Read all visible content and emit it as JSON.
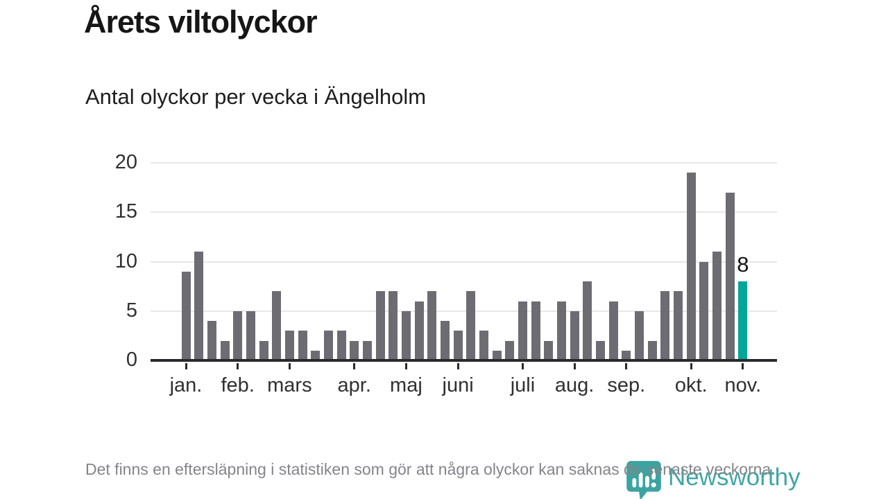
{
  "header": {
    "title": "Årets viltolyckor",
    "subtitle": "Antal olyckor per vecka i Ängelholm"
  },
  "chart_data": {
    "type": "bar",
    "title": "Årets viltolyckor",
    "subtitle": "Antal olyckor per vecka i Ängelholm",
    "x_unit": "vecka",
    "weeks": [
      1,
      2,
      3,
      4,
      5,
      6,
      7,
      8,
      9,
      10,
      11,
      12,
      13,
      14,
      15,
      16,
      17,
      18,
      19,
      20,
      21,
      22,
      23,
      24,
      25,
      26,
      27,
      28,
      29,
      30,
      31,
      32,
      33,
      34,
      35,
      36,
      37,
      38,
      39,
      40,
      41,
      42,
      43,
      44
    ],
    "values": [
      9,
      11,
      4,
      2,
      5,
      5,
      2,
      7,
      3,
      3,
      1,
      3,
      3,
      2,
      2,
      7,
      7,
      5,
      6,
      7,
      4,
      3,
      7,
      3,
      1,
      2,
      6,
      6,
      2,
      6,
      5,
      8,
      2,
      6,
      1,
      5,
      2,
      7,
      7,
      19,
      10,
      11,
      17,
      8
    ],
    "highlight_index": 43,
    "highlight_value_label": "8",
    "colors": {
      "bar": "#6c6c72",
      "highlight": "#04a59b"
    },
    "ylim": [
      0,
      20
    ],
    "yticks": [
      0,
      5,
      10,
      15,
      20
    ],
    "xticks": [
      {
        "label": "jan.",
        "week": 1
      },
      {
        "label": "feb.",
        "week": 5
      },
      {
        "label": "mars",
        "week": 9
      },
      {
        "label": "apr.",
        "week": 14
      },
      {
        "label": "maj",
        "week": 18
      },
      {
        "label": "juni",
        "week": 22
      },
      {
        "label": "juli",
        "week": 27
      },
      {
        "label": "aug.",
        "week": 31
      },
      {
        "label": "sep.",
        "week": 35
      },
      {
        "label": "okt.",
        "week": 40
      },
      {
        "label": "nov.",
        "week": 44
      }
    ],
    "grid": true,
    "legend_position": "none"
  },
  "footer": {
    "note": "Det finns en eftersläpning i statistiken som gör att några olyckor kan saknas de senaste veckorna."
  },
  "branding": {
    "name": "Newsworthy",
    "color": "#3fa7a3"
  }
}
